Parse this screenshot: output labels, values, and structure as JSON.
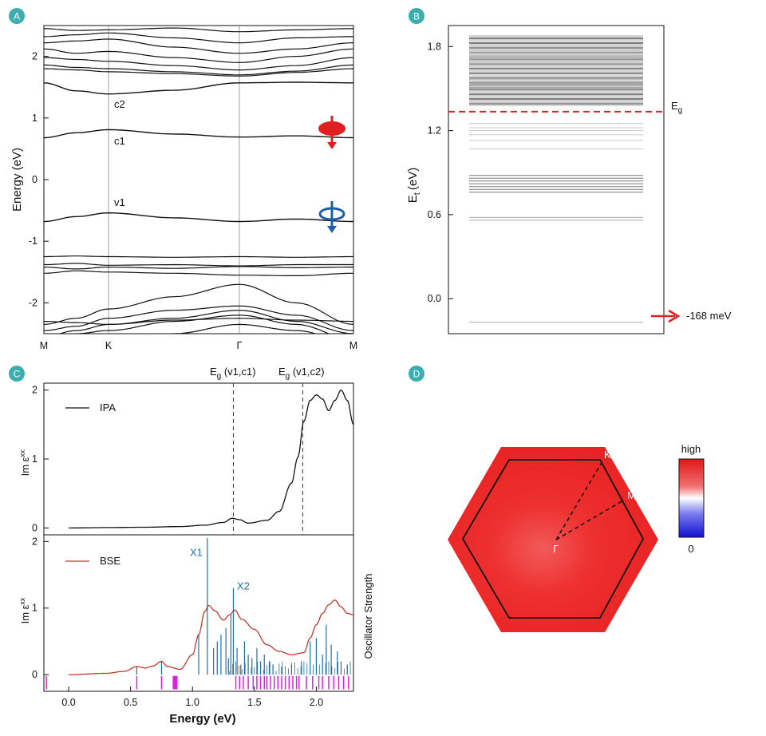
{
  "colors": {
    "badge": "#3aaeb0",
    "band": "#111111",
    "red": "#e02020",
    "blue": "#1f5fa8",
    "bse": "#c0392b",
    "osc": "#1f6fa8",
    "magenta": "#e020e0",
    "bz_fill": "#ee2f2f"
  },
  "chart_data": [
    {
      "panel": "A",
      "type": "line",
      "ylabel": "Energy (eV)",
      "ylim": [
        -2.5,
        2.5
      ],
      "yticks": [
        "2",
        "1",
        "0",
        "-1",
        "-2"
      ],
      "xticks": [
        "M",
        "K",
        "Γ",
        "M"
      ],
      "band_labels": [
        "c2",
        "c1",
        "v1"
      ],
      "series": [
        {
          "name": "v1",
          "x": [
            0,
            0.5,
            1,
            1.5,
            2,
            2.5,
            3
          ],
          "values": [
            -0.68,
            -0.6,
            -0.54,
            -0.62,
            -0.68,
            -0.64,
            -0.68
          ]
        },
        {
          "name": "c1",
          "x": [
            0,
            0.5,
            1,
            1.5,
            2,
            2.5,
            3
          ],
          "values": [
            0.68,
            0.76,
            0.81,
            0.74,
            0.69,
            0.71,
            0.68
          ]
        },
        {
          "name": "c2",
          "x": [
            0,
            0.5,
            1,
            1.5,
            2,
            2.5,
            3
          ],
          "values": [
            1.57,
            1.44,
            1.39,
            1.45,
            1.57,
            1.58,
            1.57
          ]
        }
      ]
    },
    {
      "panel": "B",
      "type": "line",
      "ylabel": "Et (eV)",
      "ylabel_main": "E",
      "ylabel_sub": "t",
      "ylabel_unit": "(eV)",
      "ylim": [
        -0.25,
        1.95
      ],
      "yticks": [
        "1.8",
        "1.2",
        "0.6",
        "0.0"
      ],
      "levels_dense_range": [
        1.38,
        1.88
      ],
      "levels_mid": [
        1.07,
        1.13,
        1.17,
        1.2,
        1.22,
        1.25
      ],
      "levels_low": [
        0.76,
        0.78,
        0.8,
        0.82,
        0.84,
        0.86,
        0.88
      ],
      "levels_lower": [
        0.56,
        0.58
      ],
      "levels_bottom": [
        -0.168
      ],
      "eg_value": 1.335,
      "eg_label": "E",
      "eg_sub": "g",
      "arrow_label": "-168 meV"
    },
    {
      "panel": "C",
      "type": "line",
      "xlabel": "Energy (eV)",
      "xlim": [
        -0.2,
        2.3
      ],
      "xticks": [
        "0.0",
        "0.5",
        "1.0",
        "1.5",
        "2.0"
      ],
      "top": {
        "ylabel": "Im εxx",
        "ylabel_main": "Im ε",
        "ylabel_sup": "xx",
        "ylim": [
          -0.1,
          2.1
        ],
        "yticks": [
          "2",
          "1",
          "0"
        ],
        "legend": "IPA",
        "x": [
          0,
          0.3,
          0.6,
          0.9,
          1.1,
          1.25,
          1.32,
          1.38,
          1.45,
          1.6,
          1.7,
          1.8,
          1.85,
          1.9,
          1.95,
          2.0,
          2.05,
          2.1,
          2.15,
          2.2,
          2.25,
          2.3
        ],
        "values": [
          0.0,
          0.005,
          0.01,
          0.02,
          0.04,
          0.08,
          0.14,
          0.12,
          0.07,
          0.11,
          0.24,
          0.65,
          1.02,
          1.55,
          1.85,
          1.93,
          1.87,
          1.7,
          1.85,
          2.0,
          1.85,
          1.5
        ]
      },
      "vlines": [
        {
          "x": 1.33,
          "label": "E",
          "sub": "g",
          "rest": " (v1,c1)"
        },
        {
          "x": 1.89,
          "label": "E",
          "sub": "g",
          "rest": " (v1,c2)"
        }
      ],
      "bottom": {
        "ylabel": "Im εxx",
        "ylabel_main": "Im ε",
        "ylabel_sup": "xx",
        "right_label": "Oscillator Strength",
        "ylim": [
          -0.25,
          2.1
        ],
        "yticks": [
          "2",
          "1",
          "0"
        ],
        "legend": "BSE",
        "peak_labels": [
          {
            "text": "X1",
            "x": 1.03,
            "y": 1.78
          },
          {
            "text": "X2",
            "x": 1.41,
            "y": 1.28
          }
        ],
        "x": [
          0,
          0.3,
          0.45,
          0.55,
          0.62,
          0.68,
          0.75,
          0.8,
          0.9,
          1.0,
          1.05,
          1.1,
          1.13,
          1.18,
          1.25,
          1.3,
          1.34,
          1.4,
          1.5,
          1.6,
          1.7,
          1.8,
          1.9,
          1.95,
          2.0,
          2.05,
          2.1,
          2.15,
          2.2,
          2.25,
          2.3
        ],
        "values": [
          0.0,
          0.02,
          0.05,
          0.12,
          0.1,
          0.13,
          0.2,
          0.12,
          0.08,
          0.3,
          0.6,
          0.95,
          1.04,
          0.96,
          0.82,
          0.9,
          0.97,
          0.83,
          0.68,
          0.45,
          0.35,
          0.3,
          0.33,
          0.55,
          0.75,
          0.92,
          1.05,
          1.12,
          1.02,
          0.92,
          0.9
        ],
        "sticks": [
          {
            "x": 0.55,
            "h": 0.12
          },
          {
            "x": 0.75,
            "h": 0.2
          },
          {
            "x": 1.05,
            "h": 0.6
          },
          {
            "x": 1.12,
            "h": 2.05
          },
          {
            "x": 1.17,
            "h": 0.4
          },
          {
            "x": 1.2,
            "h": 0.5
          },
          {
            "x": 1.23,
            "h": 0.6
          },
          {
            "x": 1.27,
            "h": 0.7
          },
          {
            "x": 1.29,
            "h": 0.25
          },
          {
            "x": 1.31,
            "h": 0.9
          },
          {
            "x": 1.33,
            "h": 1.3
          },
          {
            "x": 1.36,
            "h": 0.4
          },
          {
            "x": 1.39,
            "h": 0.15
          },
          {
            "x": 1.42,
            "h": 0.5
          },
          {
            "x": 1.45,
            "h": 0.3
          },
          {
            "x": 1.48,
            "h": 0.25
          },
          {
            "x": 1.52,
            "h": 0.4
          },
          {
            "x": 1.55,
            "h": 0.2
          },
          {
            "x": 1.58,
            "h": 0.3
          },
          {
            "x": 1.62,
            "h": 0.2
          },
          {
            "x": 1.65,
            "h": 0.15
          },
          {
            "x": 1.72,
            "h": 0.12
          },
          {
            "x": 1.8,
            "h": 0.15
          },
          {
            "x": 1.88,
            "h": 0.2
          },
          {
            "x": 1.95,
            "h": 0.5
          },
          {
            "x": 2.0,
            "h": 0.55
          },
          {
            "x": 2.05,
            "h": 0.3
          },
          {
            "x": 2.08,
            "h": 0.75
          },
          {
            "x": 2.12,
            "h": 0.45
          },
          {
            "x": 2.17,
            "h": 0.35
          },
          {
            "x": 2.2,
            "h": 0.2
          },
          {
            "x": 2.25,
            "h": 0.15
          }
        ],
        "dark_states": [
          -0.18,
          0.55,
          0.75,
          0.85,
          0.86,
          0.87,
          1.35,
          1.38,
          1.41,
          1.45,
          1.49,
          1.52,
          1.55,
          1.58,
          1.6,
          1.63,
          1.66,
          1.69,
          1.72,
          1.75,
          1.78,
          1.81,
          1.84,
          1.86,
          1.92,
          1.97,
          2.02,
          2.05,
          2.1,
          2.14,
          2.18,
          2.22,
          2.26
        ]
      }
    },
    {
      "panel": "D",
      "type": "heatmap",
      "points": [
        "K",
        "M",
        "Γ"
      ],
      "colorbar_high": "high",
      "colorbar_low": "0"
    }
  ],
  "badges": [
    "A",
    "B",
    "C",
    "D"
  ]
}
